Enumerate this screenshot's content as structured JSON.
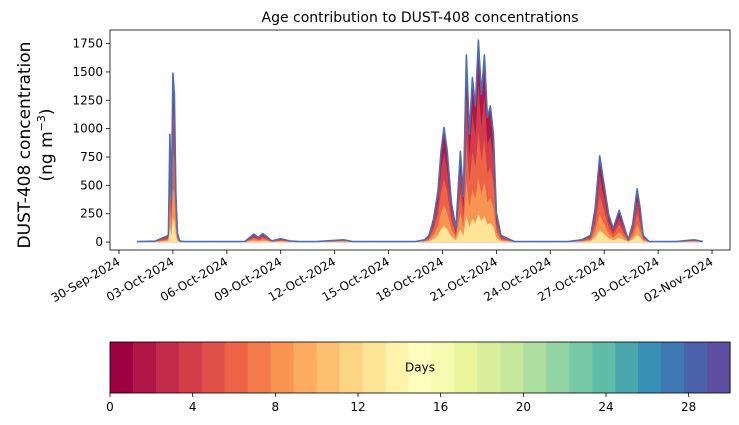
{
  "chart_data": {
    "type": "area",
    "title": "Age contribution to DUST-408 concentrations",
    "ylabel_line1": "DUST-408 concentration",
    "ylabel_line2": "(ng m",
    "ylabel_sup": "−3",
    "ylabel_close": ")",
    "ylim": [
      -70,
      1870
    ],
    "yticks": [
      0,
      250,
      500,
      750,
      1000,
      1250,
      1500,
      1750
    ],
    "xlim": [
      "2024-09-29T12:00",
      "2024-11-03T00:00"
    ],
    "xticks": [
      "30-Sep-2024",
      "03-Oct-2024",
      "06-Oct-2024",
      "09-Oct-2024",
      "12-Oct-2024",
      "15-Oct-2024",
      "18-Oct-2024",
      "21-Oct-2024",
      "24-Oct-2024",
      "27-Oct-2024",
      "30-Oct-2024",
      "02-Nov-2024"
    ],
    "grid": false,
    "total_series": {
      "name": "",
      "color": "#4a6fb5",
      "x": [
        "2024-10-01T00:00",
        "2024-10-02T00:00",
        "2024-10-02T18:00",
        "2024-10-02T20:00",
        "2024-10-02T22:00",
        "2024-10-03T00:00",
        "2024-10-03T02:00",
        "2024-10-03T04:00",
        "2024-10-03T06:00",
        "2024-10-03T09:00",
        "2024-10-03T14:00",
        "2024-10-04T00:00",
        "2024-10-05T00:00",
        "2024-10-07T00:00",
        "2024-10-07T12:00",
        "2024-10-07T18:00",
        "2024-10-08T00:00",
        "2024-10-08T06:00",
        "2024-10-08T12:00",
        "2024-10-09T00:00",
        "2024-10-09T12:00",
        "2024-10-10T00:00",
        "2024-10-11T00:00",
        "2024-10-12T12:00",
        "2024-10-13T00:00",
        "2024-10-14T00:00",
        "2024-10-15T00:00",
        "2024-10-16T00:00",
        "2024-10-16T12:00",
        "2024-10-17T00:00",
        "2024-10-17T06:00",
        "2024-10-17T12:00",
        "2024-10-17T18:00",
        "2024-10-17T22:00",
        "2024-10-18T02:00",
        "2024-10-18T06:00",
        "2024-10-18T12:00",
        "2024-10-18T18:00",
        "2024-10-19T00:00",
        "2024-10-19T04:00",
        "2024-10-19T08:00",
        "2024-10-19T12:00",
        "2024-10-19T16:00",
        "2024-10-19T20:00",
        "2024-10-20T00:00",
        "2024-10-20T04:00",
        "2024-10-20T08:00",
        "2024-10-20T12:00",
        "2024-10-20T16:00",
        "2024-10-20T20:00",
        "2024-10-21T00:00",
        "2024-10-21T06:00",
        "2024-10-21T12:00",
        "2024-10-22T00:00",
        "2024-10-23T00:00",
        "2024-10-24T00:00",
        "2024-10-25T00:00",
        "2024-10-25T18:00",
        "2024-10-26T06:00",
        "2024-10-26T12:00",
        "2024-10-26T18:00",
        "2024-10-27T00:00",
        "2024-10-27T06:00",
        "2024-10-27T12:00",
        "2024-10-27T20:00",
        "2024-10-28T02:00",
        "2024-10-28T08:00",
        "2024-10-28T14:00",
        "2024-10-28T20:00",
        "2024-10-29T00:00",
        "2024-10-29T04:00",
        "2024-10-29T12:00",
        "2024-10-30T00:00",
        "2024-10-31T00:00",
        "2024-11-01T00:00",
        "2024-11-01T12:00"
      ],
      "y": [
        5,
        8,
        60,
        950,
        380,
        1490,
        1300,
        420,
        80,
        10,
        5,
        5,
        5,
        5,
        70,
        40,
        75,
        45,
        10,
        30,
        10,
        5,
        5,
        20,
        5,
        5,
        5,
        5,
        5,
        20,
        60,
        200,
        450,
        800,
        1010,
        820,
        350,
        120,
        800,
        400,
        1650,
        950,
        1450,
        1200,
        1780,
        1300,
        1650,
        1100,
        1200,
        950,
        260,
        60,
        40,
        5,
        5,
        5,
        5,
        20,
        60,
        300,
        760,
        500,
        240,
        120,
        280,
        150,
        20,
        160,
        470,
        300,
        60,
        5,
        5,
        5,
        20,
        5
      ]
    },
    "age_bins_days": [
      0,
      1,
      2,
      3,
      4,
      5,
      6,
      7,
      8,
      9,
      10,
      11,
      12,
      13,
      14,
      15,
      16,
      17,
      18,
      19,
      20,
      21,
      22,
      23,
      24,
      25,
      26,
      27,
      28,
      29,
      30
    ],
    "colorbar": {
      "label": "Days",
      "ticks": [
        0,
        4,
        8,
        12,
        16,
        20,
        24,
        28
      ],
      "colormap": "Spectral",
      "colors": [
        "#9e0142",
        "#b01646",
        "#c32b4a",
        "#d33d4a",
        "#e0504a",
        "#ec6346",
        "#f47b4b",
        "#f99553",
        "#fdab5f",
        "#fdc070",
        "#fdd482",
        "#fee496",
        "#fff2ab",
        "#fffdbc",
        "#f6fbb2",
        "#eaf69e",
        "#d9ef9b",
        "#c6e89d",
        "#add ea2",
        "#93d4a4",
        "#77c9a5",
        "#5fbca6",
        "#4aa8ad",
        "#3990b6",
        "#3f78b2",
        "#4c61ab",
        "#5e4fa2"
      ]
    }
  }
}
